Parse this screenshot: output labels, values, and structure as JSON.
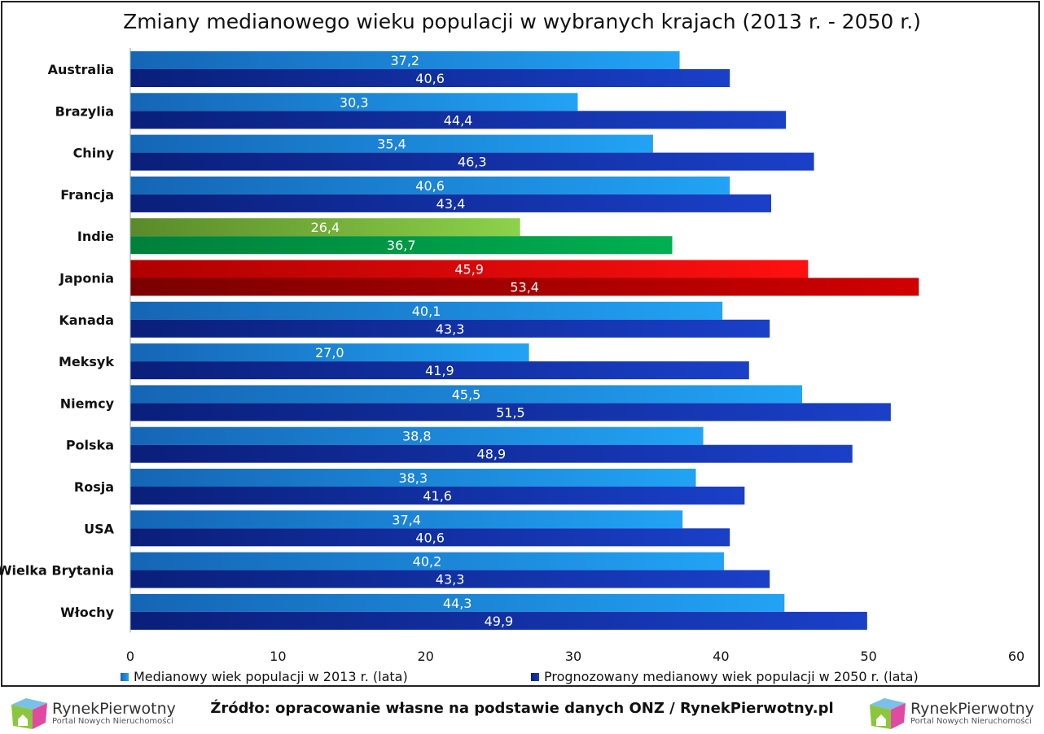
{
  "chart_data": {
    "type": "bar",
    "orientation": "horizontal",
    "title": "Zmiany medianowego wieku populacji w wybranych krajach (2013 r. - 2050 r.)",
    "categories": [
      "Australia",
      "Brazylia",
      "Chiny",
      "Francja",
      "Indie",
      "Japonia",
      "Kanada",
      "Meksyk",
      "Niemcy",
      "Polska",
      "Rosja",
      "USA",
      "Wielka Brytania",
      "Włochy"
    ],
    "series": [
      {
        "name": "Medianowy wiek populacji w 2013 r. (lata)",
        "color": "#1e90e8",
        "values": [
          37.2,
          30.3,
          35.4,
          40.6,
          26.4,
          45.9,
          40.1,
          27.0,
          45.5,
          38.8,
          38.3,
          37.4,
          40.2,
          44.3
        ]
      },
      {
        "name": "Prognozowany medianowy wiek populacji w 2050 r. (lata)",
        "color": "#1432a8",
        "values": [
          40.6,
          44.4,
          46.3,
          43.4,
          36.7,
          53.4,
          43.3,
          41.9,
          51.5,
          48.9,
          41.6,
          40.6,
          43.3,
          49.9
        ]
      }
    ],
    "highlight_colors": {
      "Indie": [
        "#8cc63f",
        "#00a94f"
      ],
      "Japonia": [
        "#ff0000",
        "#c00000"
      ]
    },
    "xlim": [
      0,
      60
    ],
    "xticks": [
      "0",
      "10",
      "20",
      "30",
      "40",
      "50",
      "60"
    ],
    "legend_position": "bottom",
    "grid": false
  },
  "footer": {
    "source": "Źródło: opracowanie własne na podstawie danych ONZ / RynekPierwotny.pl",
    "logo_name": "RynekPierwotny",
    "logo_sub": "Portal Nowych Nieruchomości"
  }
}
